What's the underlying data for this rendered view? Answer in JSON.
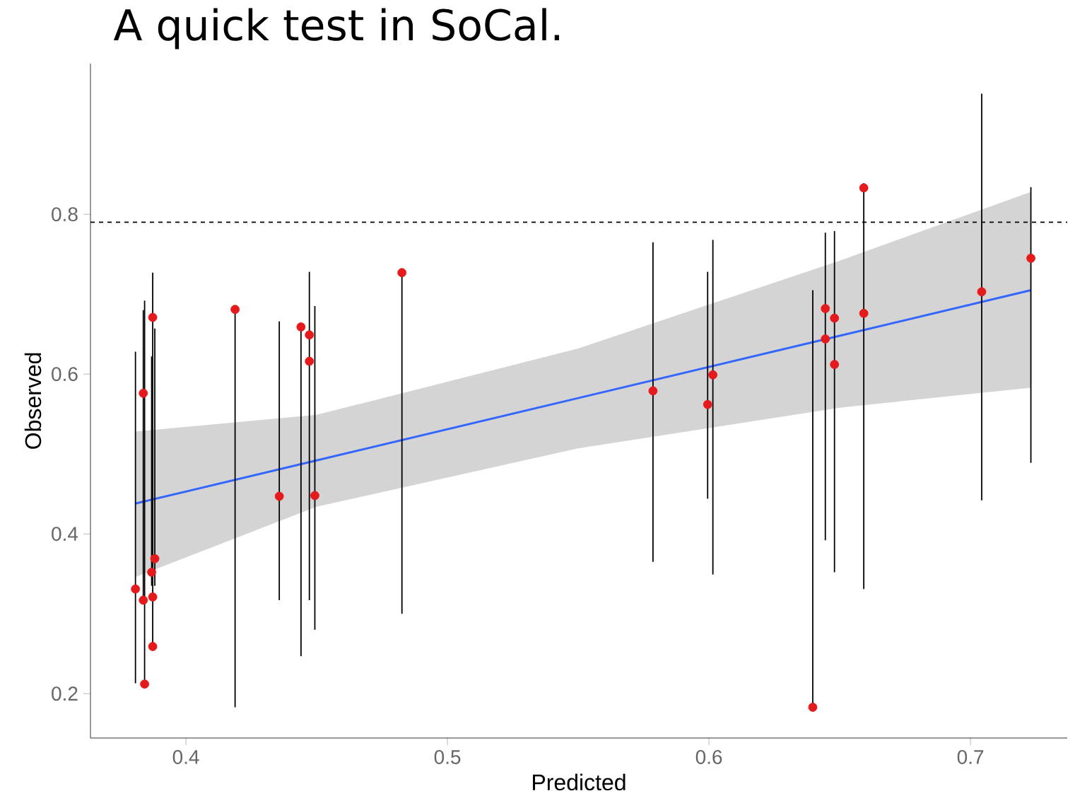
{
  "chart_data": {
    "type": "scatter",
    "title": "A quick test in SoCal.",
    "xlabel": "Predicted",
    "ylabel": "Observed",
    "xlim": [
      0.3635,
      0.737
    ],
    "ylim": [
      0.1445,
      0.9886
    ],
    "xticks": [
      0.4,
      0.5,
      0.6,
      0.7
    ],
    "yticks": [
      0.2,
      0.4,
      0.6,
      0.8
    ],
    "ref_lines": [
      {
        "axis": "y",
        "value": 0.79,
        "line_style": "dashed",
        "color": "#000000"
      }
    ],
    "series": [
      {
        "marker": "circle",
        "color": "#e41a1c",
        "x": [
          0.3807,
          0.3842,
          0.3837,
          0.3837,
          0.3873,
          0.3873,
          0.3873,
          0.3881,
          0.3869,
          0.4188,
          0.4357,
          0.444,
          0.4472,
          0.4472,
          0.4493,
          0.4826,
          0.5786,
          0.5995,
          0.6015,
          0.6397,
          0.6445,
          0.6445,
          0.648,
          0.648,
          0.6592,
          0.6592,
          0.7043,
          0.7231
        ],
        "values": [
          0.331,
          0.212,
          0.576,
          0.317,
          0.671,
          0.321,
          0.259,
          0.369,
          0.352,
          0.681,
          0.447,
          0.659,
          0.649,
          0.616,
          0.448,
          0.727,
          0.579,
          0.562,
          0.599,
          0.183,
          0.682,
          0.644,
          0.67,
          0.612,
          0.833,
          0.676,
          0.703,
          0.745
        ],
        "errors": [
          [
            0.213,
            0.628
          ],
          [
            0.212,
            0.692
          ],
          null,
          [
            0.317,
            0.68
          ],
          null,
          null,
          [
            0.259,
            0.727
          ],
          [
            0.335,
            0.657
          ],
          [
            0.335,
            0.622
          ],
          [
            0.183,
            0.681
          ],
          [
            0.317,
            0.666
          ],
          [
            0.247,
            0.659
          ],
          [
            0.317,
            0.728
          ],
          null,
          [
            0.28,
            0.685
          ],
          [
            0.3,
            0.727
          ],
          [
            0.365,
            0.765
          ],
          [
            0.444,
            0.728
          ],
          [
            0.349,
            0.768
          ],
          [
            0.183,
            0.705
          ],
          [
            0.392,
            0.777
          ],
          null,
          [
            0.352,
            0.779
          ],
          null,
          [
            0.331,
            0.839
          ],
          null,
          [
            0.442,
            0.951
          ],
          [
            0.489,
            0.834
          ]
        ]
      },
      {
        "type": "line",
        "color": "#3366ff",
        "x": [
          0.3807,
          0.45,
          0.55,
          0.65,
          0.7231
        ],
        "values": [
          0.438,
          0.492,
          0.57,
          0.648,
          0.705
        ],
        "lower": [
          0.346,
          0.434,
          0.507,
          0.558,
          0.583
        ],
        "upper": [
          0.528,
          0.549,
          0.632,
          0.742,
          0.828
        ]
      }
    ]
  }
}
